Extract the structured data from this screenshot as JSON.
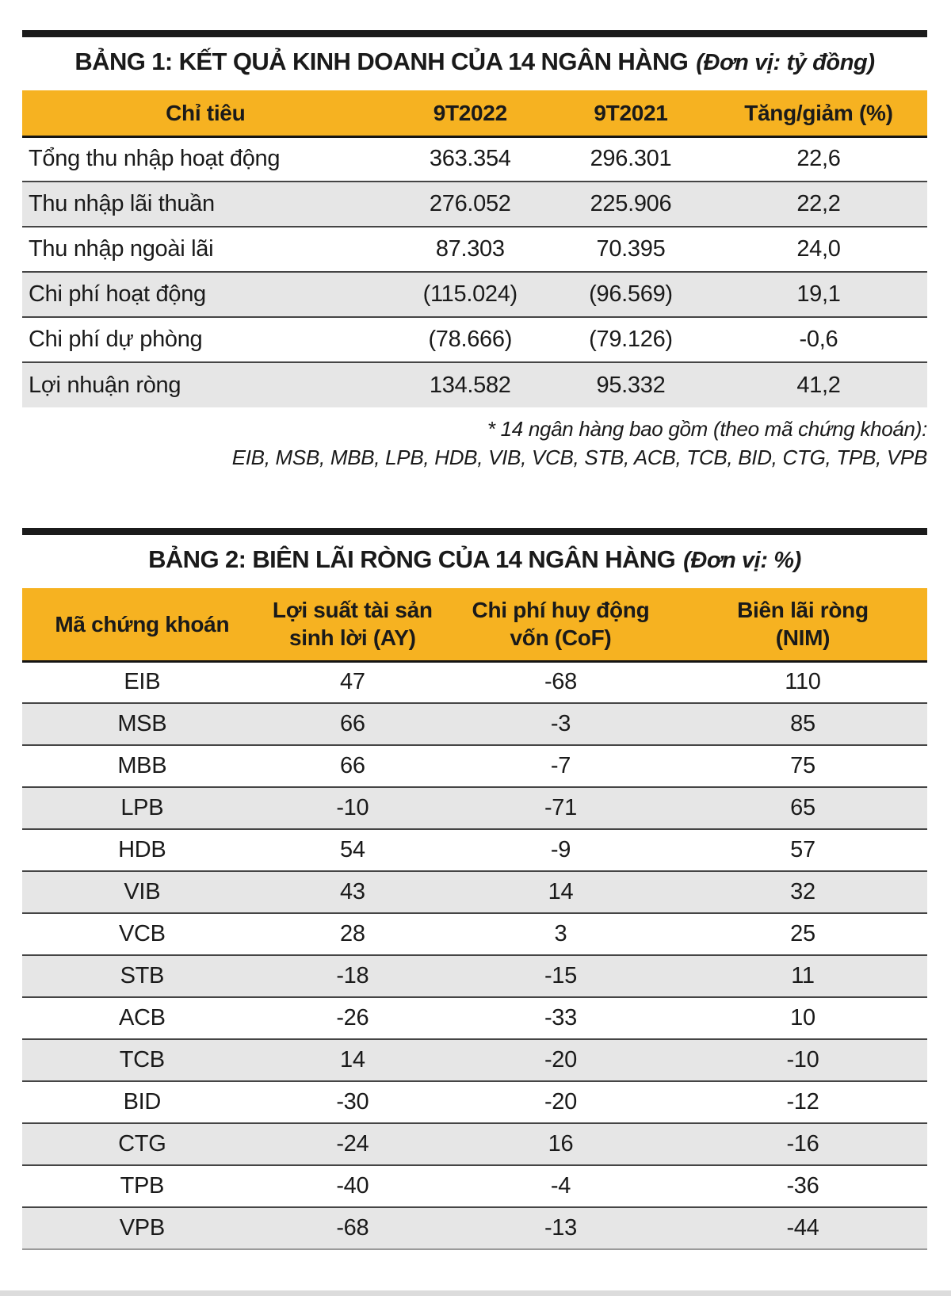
{
  "colors": {
    "header_bg": "#F6B221",
    "row_alt_bg": "#E6E6E6",
    "rule_bar": "#1b1b1b",
    "row_border": "#454545",
    "text": "#1a1a1a"
  },
  "table1": {
    "title": "BẢNG 1: KẾT QUẢ KINH DOANH CỦA 14 NGÂN HÀNG",
    "unit": "(Đơn vị: tỷ đồng)",
    "columns": [
      "Chỉ tiêu",
      "9T2022",
      "9T2021",
      "Tăng/giảm (%)"
    ],
    "rows": [
      [
        "Tổng thu nhập hoạt động",
        "363.354",
        "296.301",
        "22,6"
      ],
      [
        "Thu nhập lãi thuần",
        "276.052",
        "225.906",
        "22,2"
      ],
      [
        "Thu nhập ngoài lãi",
        "87.303",
        "70.395",
        "24,0"
      ],
      [
        "Chi phí hoạt động",
        "(115.024)",
        "(96.569)",
        "19,1"
      ],
      [
        "Chi phí dự phòng",
        "(78.666)",
        "(79.126)",
        "-0,6"
      ],
      [
        "Lợi nhuận ròng",
        "134.582",
        "95.332",
        "41,2"
      ]
    ],
    "footnote_line1": "* 14 ngân hàng bao gồm (theo mã chứng khoán):",
    "footnote_line2": "EIB, MSB, MBB, LPB, HDB, VIB, VCB, STB, ACB, TCB, BID, CTG, TPB, VPB"
  },
  "table2": {
    "title": "BẢNG 2: BIÊN LÃI RÒNG CỦA 14 NGÂN HÀNG",
    "unit": "(Đơn vị: %)",
    "columns": [
      "Mã chứng khoán",
      "Lợi suất tài sản\nsinh lời (AY)",
      "Chi phí huy động\nvốn (CoF)",
      "Biên lãi ròng\n(NIM)"
    ],
    "rows": [
      [
        "EIB",
        "47",
        "-68",
        "110"
      ],
      [
        "MSB",
        "66",
        "-3",
        "85"
      ],
      [
        "MBB",
        "66",
        "-7",
        "75"
      ],
      [
        "LPB",
        "-10",
        "-71",
        "65"
      ],
      [
        "HDB",
        "54",
        "-9",
        "57"
      ],
      [
        "VIB",
        "43",
        "14",
        "32"
      ],
      [
        "VCB",
        "28",
        "3",
        "25"
      ],
      [
        "STB",
        "-18",
        "-15",
        "11"
      ],
      [
        "ACB",
        "-26",
        "-33",
        "10"
      ],
      [
        "TCB",
        "14",
        "-20",
        "-10"
      ],
      [
        "BID",
        "-30",
        "-20",
        "-12"
      ],
      [
        "CTG",
        "-24",
        "16",
        "-16"
      ],
      [
        "TPB",
        "-40",
        "-4",
        "-36"
      ],
      [
        "VPB",
        "-68",
        "-13",
        "-44"
      ]
    ]
  }
}
